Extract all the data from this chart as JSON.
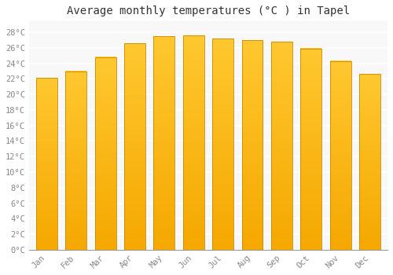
{
  "title": "Average monthly temperatures (°C ) in Tapel",
  "months": [
    "Jan",
    "Feb",
    "Mar",
    "Apr",
    "May",
    "Jun",
    "Jul",
    "Aug",
    "Sep",
    "Oct",
    "Nov",
    "Dec"
  ],
  "values": [
    22.1,
    23.0,
    24.8,
    26.6,
    27.5,
    27.6,
    27.2,
    27.0,
    26.8,
    25.9,
    24.3,
    22.6
  ],
  "bar_color_top": "#FFC830",
  "bar_color_bottom": "#F5A800",
  "bar_edge_color": "#CC8800",
  "background_color": "#FFFFFF",
  "plot_bg_color": "#F8F8F8",
  "grid_color": "#FFFFFF",
  "ytick_labels": [
    "0°C",
    "2°C",
    "4°C",
    "6°C",
    "8°C",
    "10°C",
    "12°C",
    "14°C",
    "16°C",
    "18°C",
    "20°C",
    "22°C",
    "24°C",
    "26°C",
    "28°C"
  ],
  "ytick_values": [
    0,
    2,
    4,
    6,
    8,
    10,
    12,
    14,
    16,
    18,
    20,
    22,
    24,
    26,
    28
  ],
  "ylim": [
    0,
    29.5
  ],
  "title_fontsize": 10,
  "tick_fontsize": 7.5,
  "tick_color": "#888888",
  "font_family": "monospace",
  "figsize": [
    5.0,
    3.5
  ],
  "dpi": 100
}
